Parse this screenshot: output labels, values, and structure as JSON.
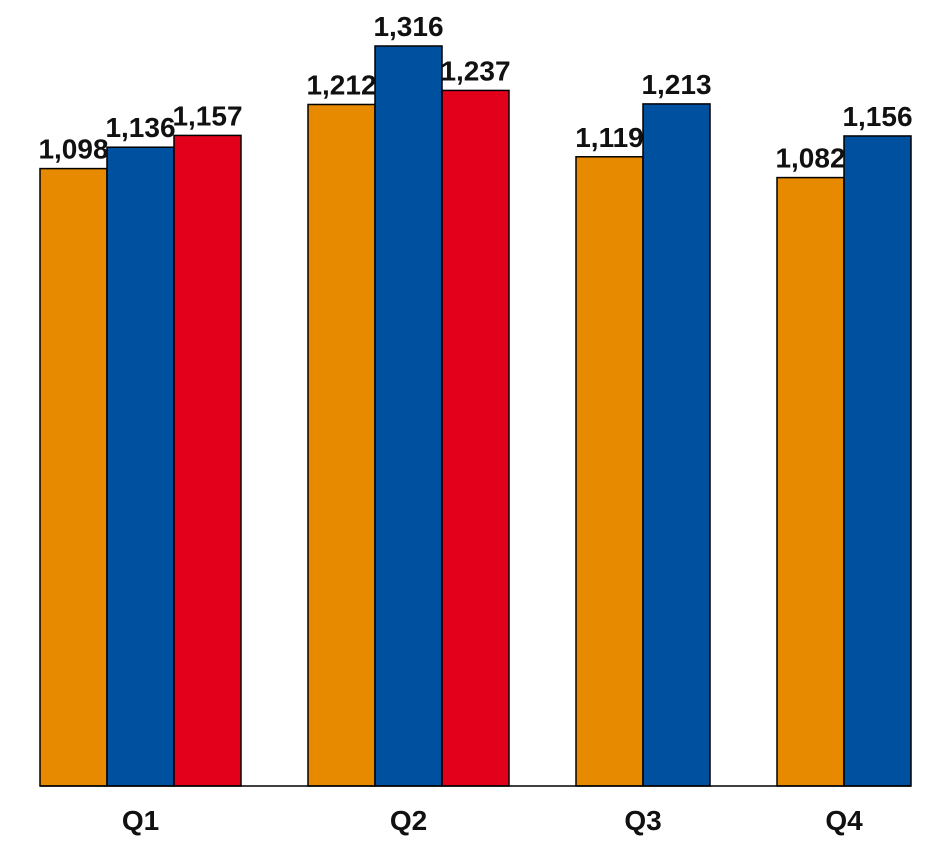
{
  "chart_data": {
    "type": "bar",
    "categories": [
      "Q1",
      "Q2",
      "Q3",
      "Q4"
    ],
    "series": [
      {
        "values": [
          1098,
          1212,
          1119,
          1082
        ],
        "labels": [
          "1,098",
          "1,212",
          "1,119",
          "1,082"
        ],
        "color": "#E88A00"
      },
      {
        "values": [
          1136,
          1316,
          1213,
          1156
        ],
        "labels": [
          "1,136",
          "1,316",
          "1,213",
          "1,156"
        ],
        "color": "#0050A0"
      },
      {
        "values": [
          1157,
          1237,
          null,
          null
        ],
        "labels": [
          "1,157",
          "1,237",
          null,
          null
        ],
        "color": "#E2001A"
      }
    ],
    "ylim": [
      0,
      1316
    ],
    "grid": false,
    "legend": "none"
  }
}
